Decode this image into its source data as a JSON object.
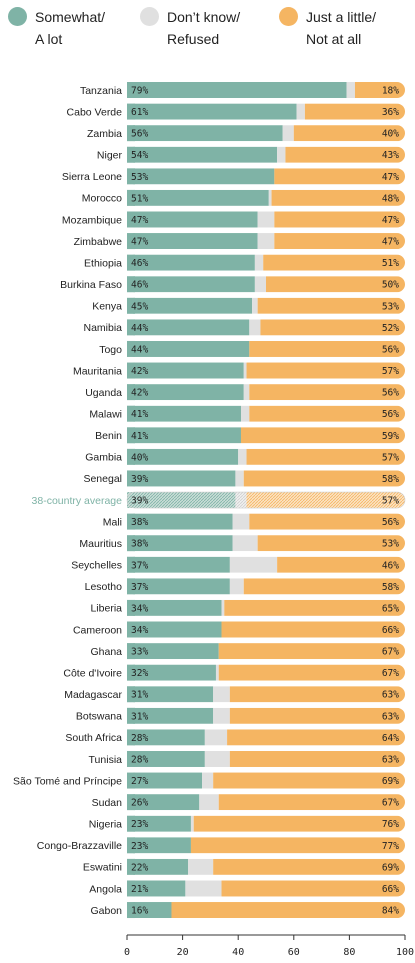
{
  "legend": [
    {
      "label": "Somewhat/\nA lot",
      "color": "#7fb3a6"
    },
    {
      "label": "Don’t know/\nRefused",
      "color": "#e0e0e0"
    },
    {
      "label": "Just a little/\nNot at all",
      "color": "#f5b562"
    }
  ],
  "chart_data": {
    "type": "bar",
    "orientation": "horizontal",
    "stacked": true,
    "title": "",
    "xlabel": "",
    "ylabel": "",
    "xlim": [
      0,
      100
    ],
    "x_ticks": [
      0,
      20,
      40,
      60,
      80,
      100
    ],
    "grid": false,
    "legend_position": "top",
    "highlight_category": "38-country average",
    "categories": [
      "Tanzania",
      "Cabo Verde",
      "Zambia",
      "Niger",
      "Sierra Leone",
      "Morocco",
      "Mozambique",
      "Zimbabwe",
      "Ethiopia",
      "Burkina Faso",
      "Kenya",
      "Namibia",
      "Togo",
      "Mauritania",
      "Uganda",
      "Malawi",
      "Benin",
      "Gambia",
      "Senegal",
      "38-country average",
      "Mali",
      "Mauritius",
      "Seychelles",
      "Lesotho",
      "Liberia",
      "Cameroon",
      "Ghana",
      "Côte d'Ivoire",
      "Madagascar",
      "Botswana",
      "South Africa",
      "Tunisia",
      "São Tomé and Príncipe",
      "Sudan",
      "Nigeria",
      "Congo-Brazzaville",
      "Eswatini",
      "Angola",
      "Gabon"
    ],
    "series": [
      {
        "name": "Somewhat/ A lot",
        "color": "#7fb3a6",
        "values": [
          79,
          61,
          56,
          54,
          53,
          51,
          47,
          47,
          46,
          46,
          45,
          44,
          44,
          42,
          42,
          41,
          41,
          40,
          39,
          39,
          38,
          38,
          37,
          37,
          34,
          34,
          33,
          32,
          31,
          31,
          28,
          28,
          27,
          26,
          23,
          23,
          22,
          21,
          16
        ]
      },
      {
        "name": "Don’t know/ Refused",
        "color": "#e0e0e0",
        "values": [
          3,
          3,
          4,
          3,
          0,
          1,
          6,
          6,
          3,
          4,
          2,
          4,
          0,
          1,
          2,
          3,
          0,
          3,
          3,
          4,
          6,
          9,
          17,
          5,
          1,
          0,
          0,
          1,
          6,
          6,
          8,
          9,
          4,
          7,
          1,
          0,
          9,
          13,
          0
        ]
      },
      {
        "name": "Just a little/ Not at all",
        "color": "#f5b562",
        "values": [
          18,
          36,
          40,
          43,
          47,
          48,
          47,
          47,
          51,
          50,
          53,
          52,
          56,
          57,
          56,
          56,
          59,
          57,
          58,
          57,
          56,
          53,
          46,
          58,
          65,
          66,
          67,
          67,
          63,
          63,
          64,
          63,
          69,
          67,
          76,
          77,
          69,
          66,
          84
        ]
      }
    ]
  }
}
